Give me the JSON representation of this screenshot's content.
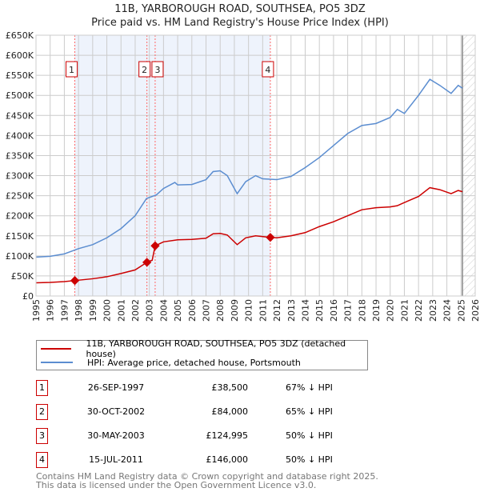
{
  "chart_data": {
    "type": "line",
    "title": "11B, YARBOROUGH ROAD, SOUTHSEA, PO5 3DZ",
    "subtitle": "Price paid vs. HM Land Registry's House Price Index (HPI)",
    "xlim": [
      1995,
      2026
    ],
    "ylim": [
      0,
      650000
    ],
    "x_ticks": [
      "1995",
      "1996",
      "1997",
      "1998",
      "1999",
      "2000",
      "2001",
      "2002",
      "2003",
      "2004",
      "2005",
      "2006",
      "2007",
      "2008",
      "2009",
      "2010",
      "2011",
      "2012",
      "2013",
      "2014",
      "2015",
      "2016",
      "2017",
      "2018",
      "2019",
      "2020",
      "2021",
      "2022",
      "2023",
      "2024",
      "2025",
      "2026"
    ],
    "y_ticks": [
      {
        "v": 0,
        "l": "£0"
      },
      {
        "v": 50000,
        "l": "£50K"
      },
      {
        "v": 100000,
        "l": "£100K"
      },
      {
        "v": 150000,
        "l": "£150K"
      },
      {
        "v": 200000,
        "l": "£200K"
      },
      {
        "v": 250000,
        "l": "£250K"
      },
      {
        "v": 300000,
        "l": "£300K"
      },
      {
        "v": 350000,
        "l": "£350K"
      },
      {
        "v": 400000,
        "l": "£400K"
      },
      {
        "v": 450000,
        "l": "£450K"
      },
      {
        "v": 500000,
        "l": "£500K"
      },
      {
        "v": 550000,
        "l": "£550K"
      },
      {
        "v": 600000,
        "l": "£600K"
      },
      {
        "v": 650000,
        "l": "£650K"
      }
    ],
    "grid": true,
    "shaded_range": [
      1997.74,
      2011.54
    ],
    "forecast_from": 2025.1,
    "series": [
      {
        "name": "11B, YARBOROUGH ROAD, SOUTHSEA, PO5 3DZ (detached house)",
        "color": "#cc0000",
        "x": [
          1995,
          1996,
          1997,
          1997.74,
          1999,
          2000,
          2001,
          2002,
          2002.83,
          2003.1,
          2003.2,
          2003.41,
          2004,
          2005,
          2006,
          2007,
          2007.5,
          2008,
          2008.5,
          2009.2,
          2009.8,
          2010.5,
          2011.54,
          2012,
          2013,
          2014,
          2015,
          2016,
          2017,
          2018,
          2019,
          2020,
          2020.5,
          2021,
          2022,
          2022.8,
          2023.5,
          2024.3,
          2024.8,
          2025.1
        ],
        "y": [
          33000,
          34000,
          36000,
          38500,
          43000,
          48000,
          56000,
          65000,
          84000,
          88000,
          89000,
          124995,
          135000,
          140000,
          141000,
          144000,
          155000,
          156000,
          152000,
          128000,
          145000,
          150000,
          146000,
          145000,
          150000,
          158000,
          173000,
          185000,
          200000,
          215000,
          220000,
          222000,
          225000,
          233000,
          248000,
          270000,
          265000,
          255000,
          263000,
          260000
        ]
      },
      {
        "name": "HPI: Average price, detached house, Portsmouth",
        "color": "#5b8dd0",
        "x": [
          1995,
          1996,
          1997,
          1998,
          1999,
          2000,
          2001,
          2002,
          2002.8,
          2003.5,
          2004,
          2004.8,
          2005,
          2006,
          2007,
          2007.5,
          2008,
          2008.5,
          2009.2,
          2009.8,
          2010.5,
          2011,
          2012,
          2013,
          2014,
          2015,
          2016,
          2017,
          2018,
          2019,
          2020,
          2020.5,
          2021,
          2022,
          2022.8,
          2023.5,
          2024.3,
          2024.8,
          2025.1
        ],
        "y": [
          97000,
          99000,
          105000,
          118000,
          128000,
          145000,
          168000,
          200000,
          243000,
          252000,
          268000,
          283000,
          277000,
          278000,
          290000,
          310000,
          312000,
          300000,
          255000,
          285000,
          300000,
          292000,
          290000,
          298000,
          320000,
          345000,
          375000,
          405000,
          425000,
          430000,
          445000,
          465000,
          455000,
          500000,
          540000,
          525000,
          505000,
          525000,
          518000
        ]
      }
    ],
    "sales": [
      {
        "label": "1",
        "x": 1997.74,
        "price": 38500,
        "date": "26-SEP-1997",
        "price_text": "£38,500",
        "hpi": "67% ↓ HPI"
      },
      {
        "label": "2",
        "x": 2002.83,
        "price": 84000,
        "date": "30-OCT-2002",
        "price_text": "£84,000",
        "hpi": "65% ↓ HPI"
      },
      {
        "label": "3",
        "x": 2003.41,
        "price": 124995,
        "date": "30-MAY-2003",
        "price_text": "£124,995",
        "hpi": "50% ↓ HPI"
      },
      {
        "label": "4",
        "x": 2011.54,
        "price": 146000,
        "date": "15-JUL-2011",
        "price_text": "£146,000",
        "hpi": "50% ↓ HPI"
      }
    ]
  },
  "footer": {
    "line1": "Contains HM Land Registry data © Crown copyright and database right 2025.",
    "line2": "This data is licensed under the Open Government Licence v3.0."
  }
}
